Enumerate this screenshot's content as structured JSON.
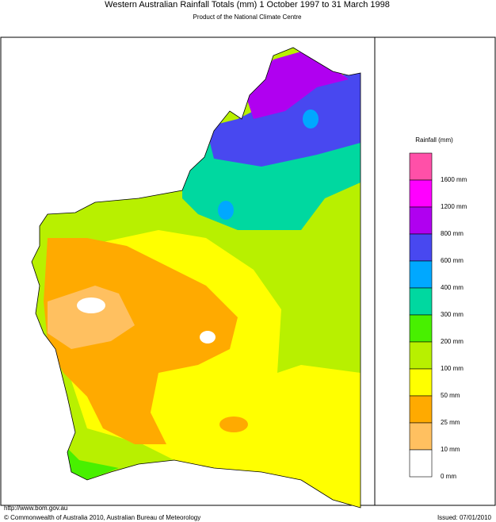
{
  "title": "Western Australian Rainfall Totals (mm) 1 October 1997 to 31 March 1998",
  "subtitle": "Product of the National Climate Centre",
  "legend": {
    "title": "Rainfall (mm)",
    "items": [
      {
        "label": "1600 mm",
        "color": "#ff50a8"
      },
      {
        "label": "1200 mm",
        "color": "#ff00ff"
      },
      {
        "label": "800 mm",
        "color": "#b000f0"
      },
      {
        "label": "600 mm",
        "color": "#4848f0"
      },
      {
        "label": "400 mm",
        "color": "#00a8ff"
      },
      {
        "label": "300 mm",
        "color": "#00d8a0"
      },
      {
        "label": "200 mm",
        "color": "#48f000"
      },
      {
        "label": "100 mm",
        "color": "#b8f000"
      },
      {
        "label": "50 mm",
        "color": "#ffff00"
      },
      {
        "label": "25 mm",
        "color": "#ffaa00"
      },
      {
        "label": "10 mm",
        "color": "#ffc060"
      },
      {
        "label": "0 mm",
        "color": "#ffffff"
      }
    ]
  },
  "footer": {
    "url": "http://www.bom.gov.au",
    "copyright": "© Commonwealth of Australia 2010, Australian Bureau of Meteorology",
    "issued": "Issued: 07/01/2010"
  }
}
